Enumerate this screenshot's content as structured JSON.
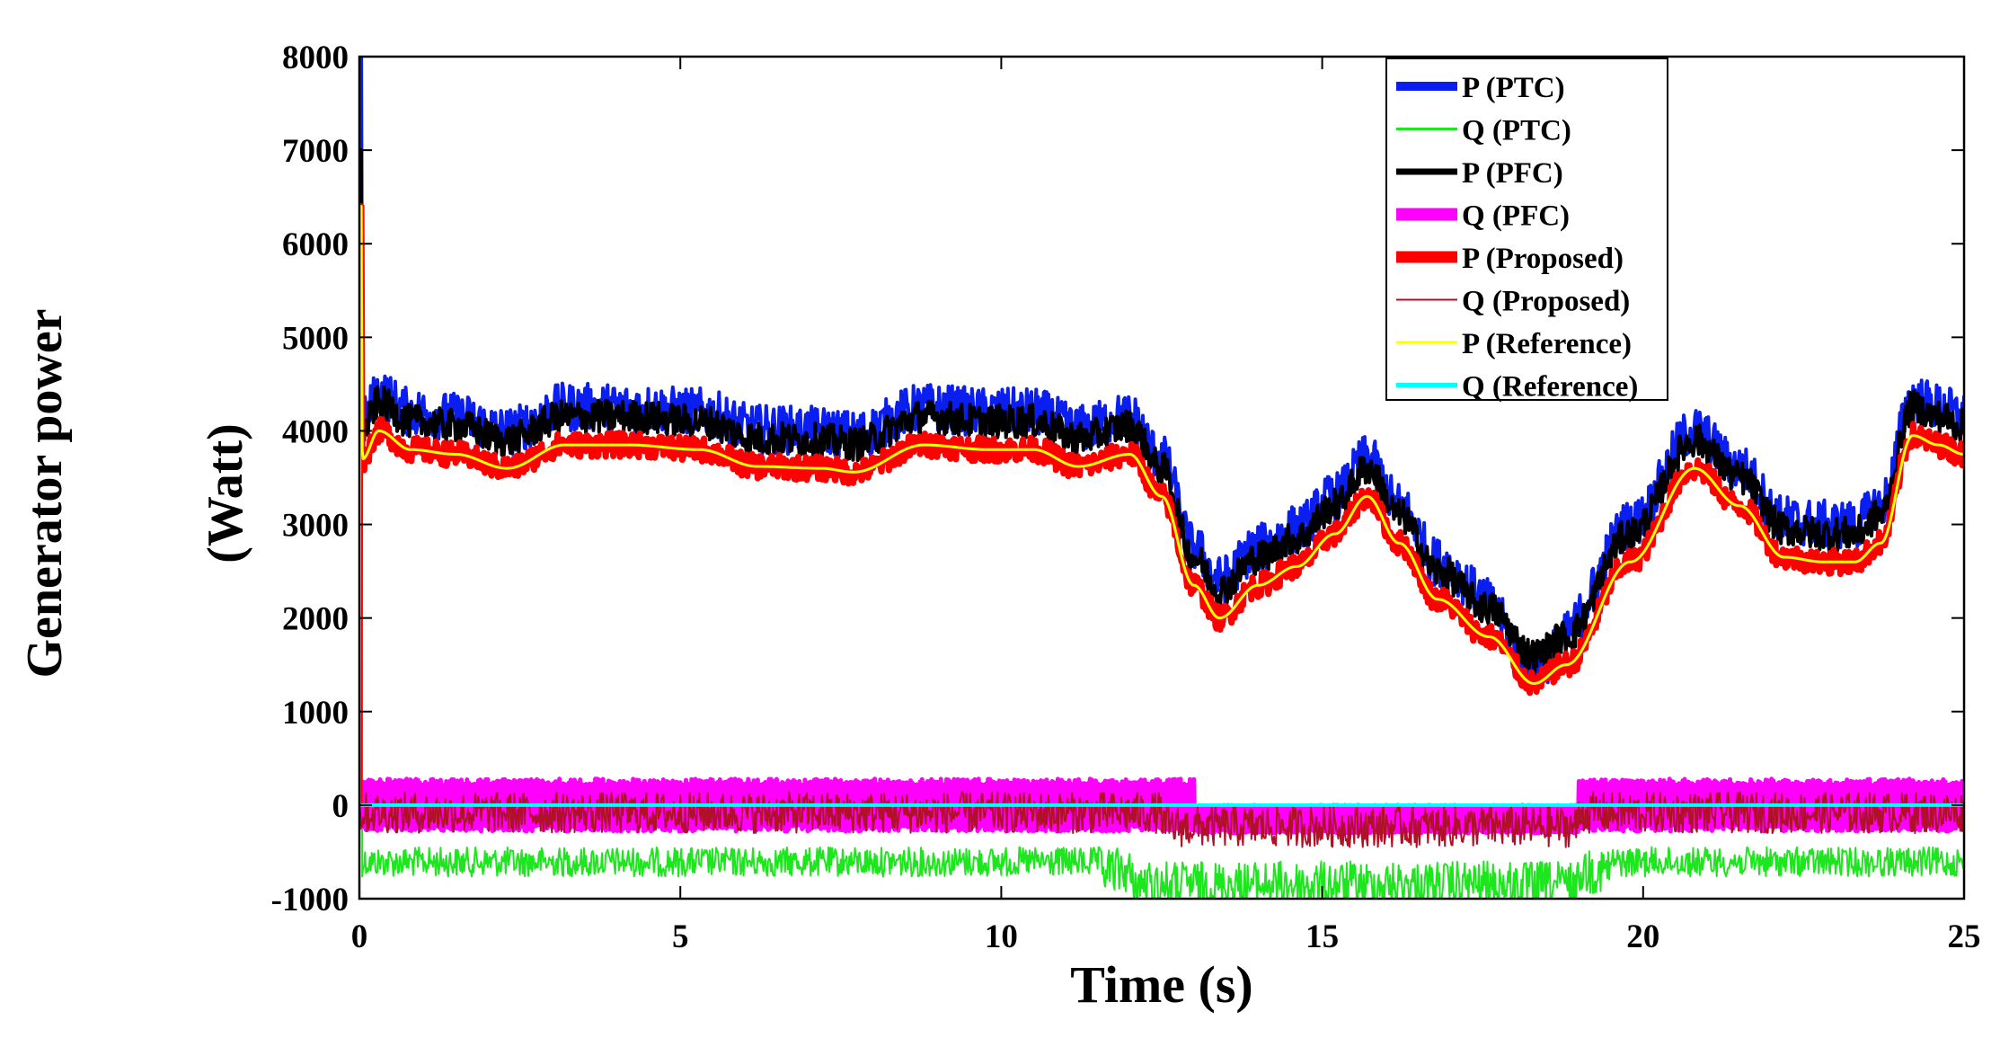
{
  "chart_data": {
    "type": "line",
    "title": "",
    "xlabel": "Time (s)",
    "ylabel_line1": "Generator power",
    "ylabel_line2": "(Watt)",
    "xlim": [
      0,
      25
    ],
    "ylim": [
      -1000,
      8000
    ],
    "xticks": [
      0,
      5,
      10,
      15,
      20,
      25
    ],
    "yticks": [
      -1000,
      0,
      1000,
      2000,
      3000,
      4000,
      5000,
      6000,
      7000,
      8000
    ],
    "legend_position": "top-right",
    "reference_profile": {
      "t": [
        0,
        0.05,
        0.3,
        0.8,
        1.5,
        2.3,
        3.2,
        4.2,
        5.3,
        6.2,
        7.2,
        7.7,
        8.8,
        9.8,
        10.5,
        11.2,
        12.0,
        12.5,
        13.0,
        13.4,
        14.0,
        14.6,
        15.2,
        15.7,
        16.2,
        16.8,
        17.6,
        18.3,
        18.8,
        19.8,
        20.8,
        21.5,
        22.2,
        22.8,
        23.3,
        23.7,
        24.2,
        24.6,
        25.0
      ],
      "p": [
        6400,
        3700,
        4000,
        3800,
        3750,
        3600,
        3850,
        3850,
        3800,
        3620,
        3600,
        3560,
        3850,
        3800,
        3800,
        3620,
        3750,
        3300,
        2350,
        2000,
        2350,
        2550,
        2900,
        3300,
        2800,
        2200,
        1800,
        1300,
        1500,
        2600,
        3600,
        3200,
        2650,
        2600,
        2600,
        2800,
        3950,
        3850,
        3750
      ],
      "q": [
        0,
        0,
        0,
        0,
        0,
        0,
        0,
        0,
        0,
        0,
        0,
        0,
        0,
        0,
        0,
        0,
        0,
        0,
        0,
        0,
        0,
        0,
        0,
        0,
        0,
        0,
        0,
        0,
        0,
        0,
        0,
        0,
        0,
        0,
        0,
        0,
        0,
        0,
        0
      ]
    },
    "series": [
      {
        "name": "P (PTC)",
        "kind": "P",
        "color": "#0a1ef0",
        "offset": 400,
        "noise": 260,
        "legend_width": 10
      },
      {
        "name": "Q (PTC)",
        "kind": "Q",
        "color": "#1ee61e",
        "base": -450,
        "spikes_down": 450,
        "legend_width": 3
      },
      {
        "name": "P (PFC)",
        "kind": "P",
        "color": "#000000",
        "offset": 300,
        "noise": 180,
        "legend_width": 7
      },
      {
        "name": "Q (PFC)",
        "kind": "Q",
        "color": "#ff00ff",
        "base": 0,
        "band": 280,
        "legend_width": 14
      },
      {
        "name": "P (Proposed)",
        "kind": "P",
        "color": "#ff0000",
        "offset": 0,
        "noise": 130,
        "legend_width": 13
      },
      {
        "name": "Q (Proposed)",
        "kind": "Q",
        "color": "#b01028",
        "base": -80,
        "noise": 220,
        "legend_width": 2
      },
      {
        "name": "P (Reference)",
        "kind": "P",
        "color": "#ffff00",
        "offset": 0,
        "noise": 0,
        "legend_width": 3
      },
      {
        "name": "Q (Reference)",
        "kind": "Q",
        "color": "#00ffff",
        "base": 0,
        "noise": 0,
        "legend_width": 5
      }
    ]
  }
}
